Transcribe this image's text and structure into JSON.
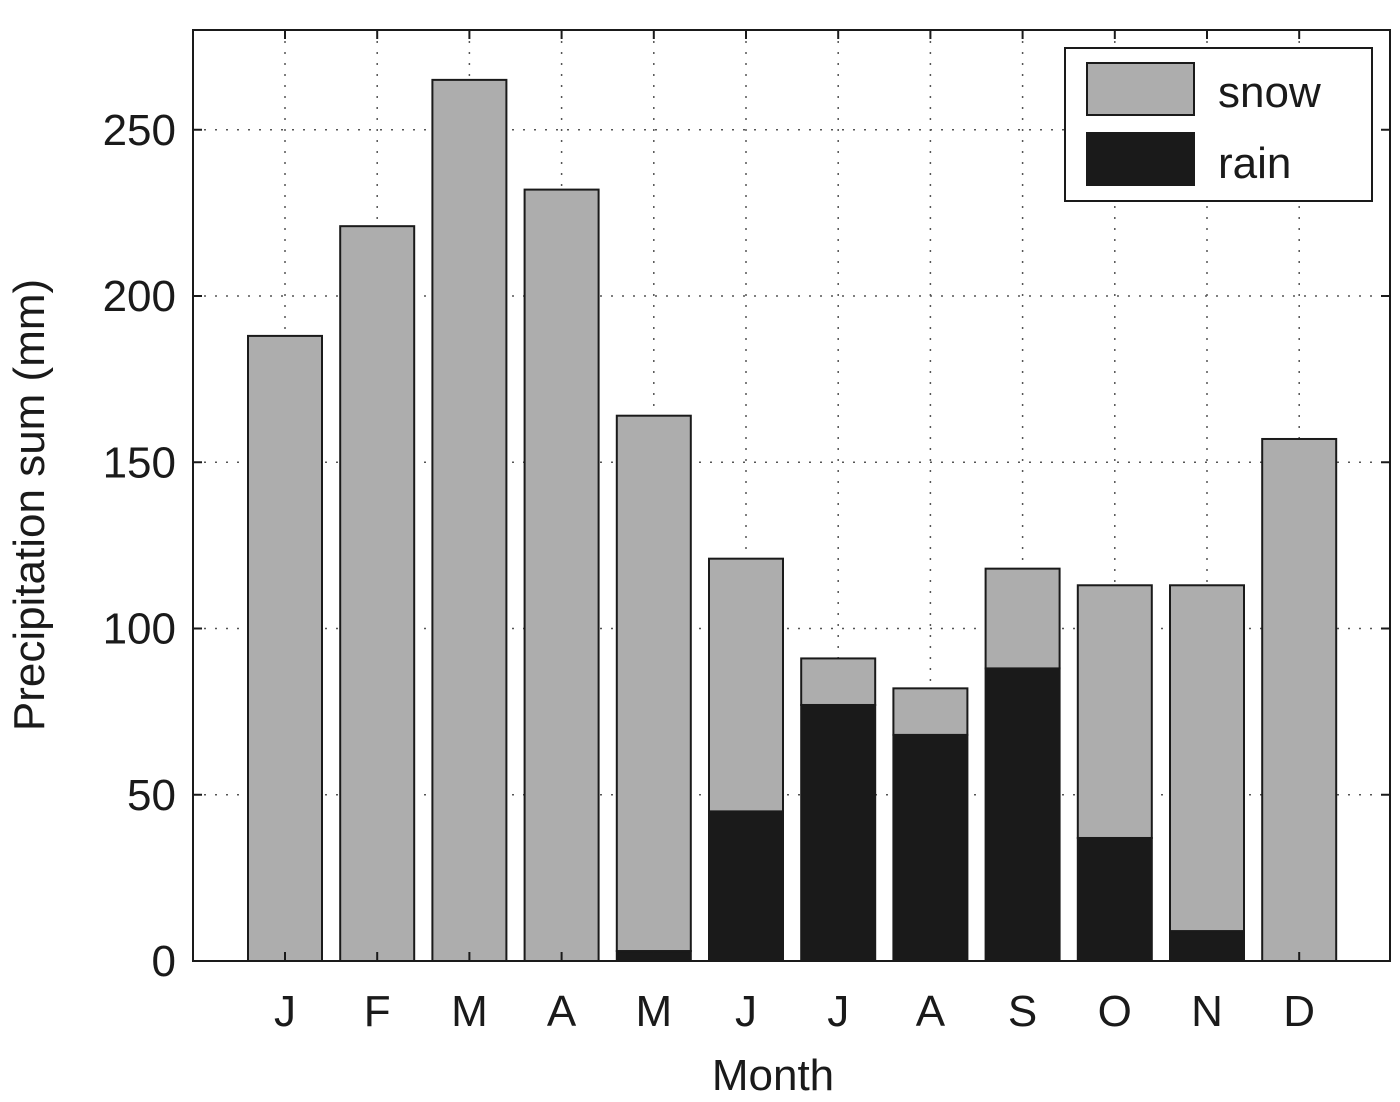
{
  "chart_data": {
    "type": "bar",
    "stacked": true,
    "xlabel": "Month",
    "ylabel": "Precipitation sum (mm)",
    "ylim": [
      0,
      280
    ],
    "yticks": [
      0,
      50,
      100,
      150,
      200,
      250
    ],
    "categories": [
      "J",
      "F",
      "M",
      "A",
      "M",
      "J",
      "J",
      "A",
      "S",
      "O",
      "N",
      "D"
    ],
    "series": [
      {
        "name": "rain",
        "color": "#1a1a1a",
        "values": [
          0,
          0,
          0,
          0,
          3,
          45,
          77,
          68,
          88,
          37,
          9,
          0
        ]
      },
      {
        "name": "snow",
        "color": "#adadad",
        "values": [
          188,
          221,
          265,
          232,
          161,
          76,
          14,
          14,
          30,
          76,
          104,
          157
        ]
      }
    ],
    "totals": [
      188,
      221,
      265,
      232,
      164,
      121,
      91,
      82,
      118,
      113,
      113,
      157
    ],
    "grid": true,
    "grid_style": "dotted",
    "legend": {
      "placement": "top-right",
      "order": [
        "snow",
        "rain"
      ]
    }
  }
}
